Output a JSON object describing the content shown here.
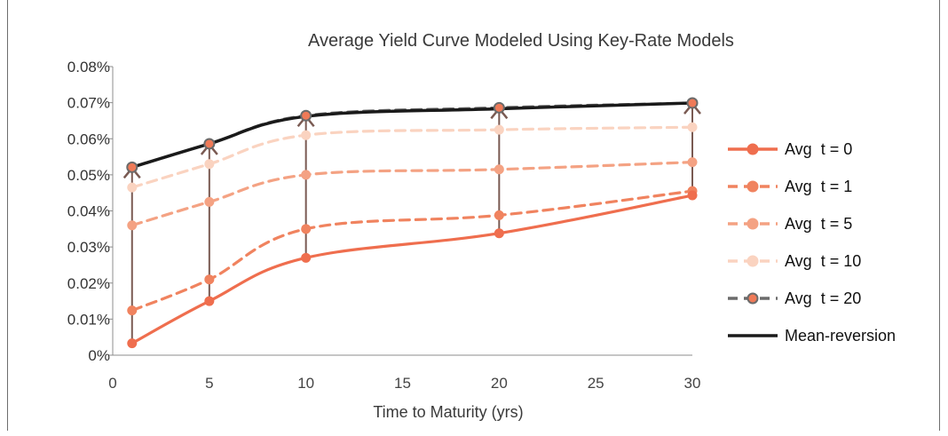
{
  "chart_data": {
    "type": "line",
    "title": "Average Yield Curve Modeled Using Key-Rate Models",
    "xlabel": "Time to Maturity (yrs)",
    "ylabel": "",
    "xlim": [
      0,
      30
    ],
    "ylim": [
      0,
      0.08
    ],
    "x_ticks": [
      0,
      5,
      10,
      15,
      20,
      25,
      30
    ],
    "x_tick_labels": [
      "0",
      "5",
      "10",
      "15",
      "20",
      "25",
      "30"
    ],
    "y_ticks": [
      0,
      0.01,
      0.02,
      0.03,
      0.04,
      0.05,
      0.06,
      0.07,
      0.08
    ],
    "y_tick_labels": [
      "0%",
      "0.01%",
      "0.02%",
      "0.03%",
      "0.04%",
      "0.05%",
      "0.06%",
      "0.07%",
      "0.08%"
    ],
    "grid": false,
    "legend_position": "right",
    "x": [
      1,
      5,
      10,
      20,
      30
    ],
    "series": [
      {
        "name": "Avg  t = 0",
        "values": [
          0.0033,
          0.015,
          0.027,
          0.0338,
          0.0443
        ],
        "color": "#ef6e4e",
        "dash": "solid",
        "marker_fill": "#ef6e4e",
        "marker_stroke": "#ef6e4e"
      },
      {
        "name": "Avg  t = 1",
        "values": [
          0.0124,
          0.021,
          0.035,
          0.0388,
          0.0455
        ],
        "color": "#f0835f",
        "dash": "dashed",
        "marker_fill": "#f0835f",
        "marker_stroke": "#f0835f"
      },
      {
        "name": "Avg  t = 5",
        "values": [
          0.036,
          0.0425,
          0.05,
          0.0515,
          0.0535
        ],
        "color": "#f4a283",
        "dash": "dashed",
        "marker_fill": "#f4a283",
        "marker_stroke": "#f4a283"
      },
      {
        "name": "Avg  t = 10",
        "values": [
          0.0465,
          0.053,
          0.061,
          0.0625,
          0.0632
        ],
        "color": "#fad3c0",
        "dash": "dashed",
        "marker_fill": "#fad3c0",
        "marker_stroke": "#fad3c0"
      },
      {
        "name": "Avg  t = 20",
        "values": [
          0.0521,
          0.0586,
          0.0664,
          0.0686,
          0.0699
        ],
        "color": "#6b6b6b",
        "dash": "dashed",
        "marker_fill": "#ef7a58",
        "marker_stroke": "#6b6b6b"
      },
      {
        "name": "Mean-reversion",
        "values": [
          0.0521,
          0.0586,
          0.0662,
          0.0683,
          0.0699
        ],
        "color": "#1a1a1a",
        "dash": "solid",
        "marker": "none"
      }
    ],
    "annotations": {
      "type": "arrows",
      "description_shown": "",
      "arrows": [
        {
          "x": 1,
          "from": 0.0033,
          "to": 0.0521
        },
        {
          "x": 5,
          "from": 0.015,
          "to": 0.0586
        },
        {
          "x": 10,
          "from": 0.027,
          "to": 0.0664
        },
        {
          "x": 20,
          "from": 0.0338,
          "to": 0.0686
        },
        {
          "x": 30,
          "from": 0.0443,
          "to": 0.0699
        }
      ],
      "arrow_color": "#7a5a52"
    }
  }
}
